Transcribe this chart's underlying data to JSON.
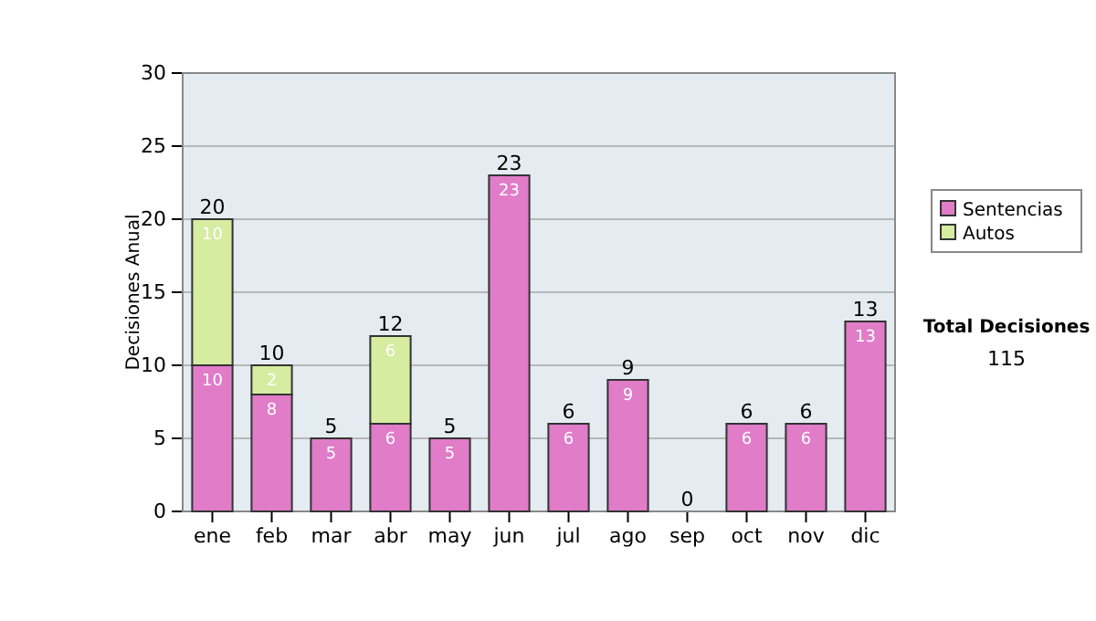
{
  "chart_data": {
    "type": "bar",
    "stacked": true,
    "ylabel": "Decisiones Anual",
    "categories": [
      "ene",
      "feb",
      "mar",
      "abr",
      "may",
      "jun",
      "jul",
      "ago",
      "sep",
      "oct",
      "nov",
      "dic"
    ],
    "series": [
      {
        "name": "Sentencias",
        "color": "#e07cc8",
        "values": [
          10,
          8,
          5,
          6,
          5,
          23,
          6,
          9,
          0,
          6,
          6,
          13
        ],
        "value_labels": [
          "10",
          "8",
          "5",
          "6",
          "5",
          "23",
          "6",
          "9",
          null,
          "6",
          "6",
          "13"
        ]
      },
      {
        "name": "Autos",
        "color": "#d6eca0",
        "values": [
          10,
          2,
          0,
          6,
          0,
          0,
          0,
          0,
          0,
          0,
          0,
          0
        ],
        "value_labels": [
          "10",
          "2",
          null,
          "6",
          null,
          null,
          null,
          null,
          null,
          null,
          null,
          null
        ]
      }
    ],
    "totals": [
      "20",
      "10",
      "5",
      "12",
      "5",
      "23",
      "6",
      "9",
      "0",
      "6",
      "6",
      "13"
    ],
    "ylim": [
      0,
      30
    ],
    "yticks": [
      0,
      5,
      10,
      15,
      20,
      25,
      30
    ],
    "grid": "y",
    "legend": "right",
    "annotations": [
      "Total Decisiones",
      "115"
    ]
  }
}
